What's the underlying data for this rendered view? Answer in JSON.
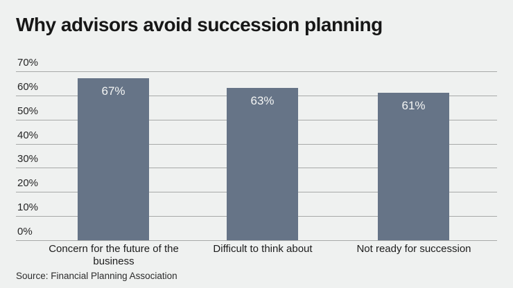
{
  "title": "Why advisors avoid succession planning",
  "source": "Source: Financial Planning Association",
  "colors": {
    "background": "#eff1f0",
    "bar": "#667487",
    "gridline": "#a7a9a8",
    "title": "#171717",
    "bar_label": "#f4f5f4"
  },
  "chart_data": {
    "type": "bar",
    "title": "Why advisors avoid succession planning",
    "categories": [
      "Concern for the future of the business",
      "Difficult to think about",
      "Not ready for succession"
    ],
    "values": [
      67,
      63,
      61
    ],
    "value_labels": [
      "67%",
      "63%",
      "61%"
    ],
    "xlabel": "",
    "ylabel": "",
    "ylim": [
      0,
      70
    ],
    "yticks": [
      70,
      60,
      50,
      40,
      30,
      20,
      10,
      0
    ],
    "ytick_labels": [
      "70%",
      "60%",
      "50%",
      "40%",
      "30%",
      "20%",
      "10%",
      "0%"
    ],
    "grid": true,
    "legend": false,
    "source": "Source: Financial Planning Association"
  }
}
